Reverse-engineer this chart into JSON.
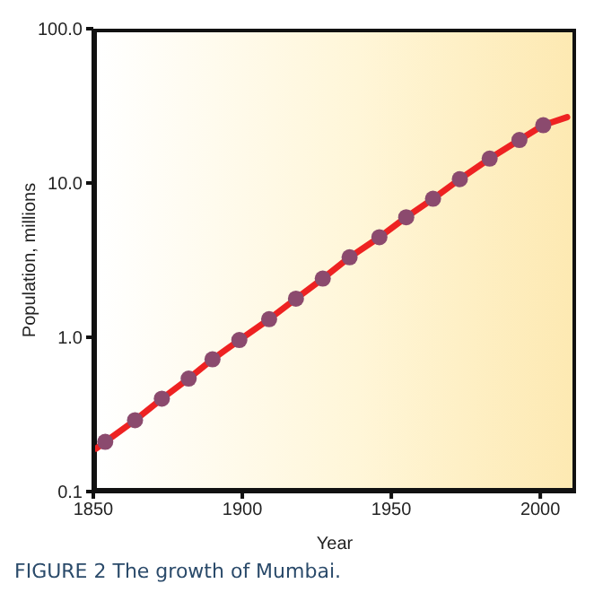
{
  "chart_data": {
    "type": "line",
    "xlabel": "Year",
    "ylabel": "Population, millions",
    "annotations": [
      "FIGURE 2 The growth of Mumbai."
    ],
    "xlim": [
      1850,
      2012
    ],
    "xticks": [
      1850,
      1900,
      1950,
      2000
    ],
    "ylim": [
      0.1,
      100
    ],
    "yticks": [
      {
        "value": 0.1,
        "label": "0.1"
      },
      {
        "value": 1,
        "label": "1.0"
      },
      {
        "value": 10,
        "label": "10.0"
      },
      {
        "value": 100,
        "label": "100.0"
      }
    ],
    "log": "y",
    "grid": false,
    "legend": false,
    "series": [
      {
        "color": "#ee2222",
        "line_style": "solid",
        "marker": "none",
        "x": [
          1851,
          1854,
          1864,
          1873,
          1882,
          1890,
          1899,
          1909,
          1918,
          1927,
          1936,
          1946,
          1955,
          1964,
          1973,
          1983,
          1993,
          2001,
          2009
        ],
        "values": [
          0.19,
          0.21,
          0.29,
          0.4,
          0.54,
          0.72,
          0.96,
          1.31,
          1.78,
          2.4,
          3.3,
          4.45,
          6.0,
          7.9,
          10.6,
          14.4,
          19,
          23.7,
          26.7
        ]
      },
      {
        "type": "scatter",
        "color": "#8b4a6e",
        "marker": "circle",
        "x": [
          1854,
          1864,
          1873,
          1882,
          1890,
          1899,
          1909,
          1918,
          1927,
          1936,
          1946,
          1955,
          1964,
          1973,
          1983,
          1993,
          2001
        ],
        "values": [
          0.21,
          0.29,
          0.4,
          0.54,
          0.72,
          0.96,
          1.31,
          1.78,
          2.4,
          3.3,
          4.45,
          6.0,
          7.9,
          10.6,
          14.4,
          19,
          23.7
        ]
      }
    ]
  }
}
